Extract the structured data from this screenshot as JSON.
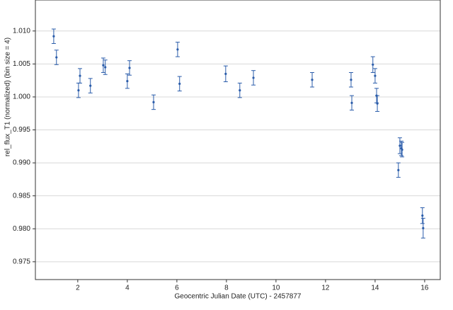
{
  "chart_data": {
    "type": "errorbar",
    "xlabel": "Geocentric Julian Date (UTC) - 2457877",
    "ylabel": "rel_flux_T1 (normalized) (bin size = 4)",
    "color": "#2a5caa",
    "grid": true,
    "xlim": [
      0.29,
      16.63
    ],
    "ylim": [
      0.9723,
      1.0147
    ],
    "xticks": [
      2,
      4,
      6,
      8,
      10,
      12,
      14,
      16
    ],
    "yticks": [
      0.975,
      {
        "value": 0.98,
        "label": "0.980"
      },
      0.985,
      {
        "value": 0.99,
        "label": "0.990"
      },
      0.995,
      {
        "value": 1.0,
        "label": "1.000"
      },
      1.005,
      {
        "value": 1.01,
        "label": "1.010"
      }
    ],
    "x": [
      1.03,
      1.14,
      2.03,
      2.09,
      2.51,
      3.03,
      3.11,
      4.0,
      4.09,
      5.06,
      6.03,
      6.11,
      7.97,
      8.54,
      9.09,
      11.46,
      13.03,
      13.06,
      13.91,
      14.0,
      14.06,
      14.09,
      14.94,
      15.0,
      15.06,
      15.09,
      15.91,
      15.94
    ],
    "values": [
      1.0092,
      1.006,
      1.001,
      1.0032,
      1.0017,
      1.0048,
      1.0045,
      1.0024,
      1.0044,
      0.9992,
      1.0072,
      1.002,
      1.0035,
      1.001,
      1.0029,
      1.0026,
      1.0026,
      0.9991,
      1.0049,
      1.0032,
      1.0002,
      0.999,
      0.9889,
      0.9926,
      0.9922,
      0.992,
      0.982,
      0.9801
    ],
    "errors": [
      0.0011,
      0.0011,
      0.0011,
      0.0011,
      0.0011,
      0.0011,
      0.0011,
      0.0011,
      0.0011,
      0.0011,
      0.0011,
      0.0011,
      0.0012,
      0.0011,
      0.0011,
      0.0011,
      0.0011,
      0.0011,
      0.0012,
      0.0011,
      0.0011,
      0.0012,
      0.0011,
      0.0012,
      0.0011,
      0.0011,
      0.0012,
      0.0015
    ]
  }
}
